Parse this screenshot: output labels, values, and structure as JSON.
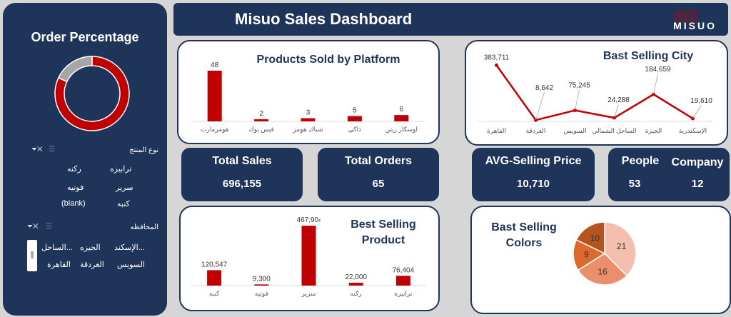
{
  "header": {
    "title": "Misuo Sales Dashboard",
    "logo_mark": "ⓒⓒ",
    "logo_text": "MISUO"
  },
  "sidebar": {
    "title": "Order Percentage",
    "slicer1": {
      "title": "نوع المنتج",
      "items": [
        "ترابيزه",
        "ركنه",
        "سرير",
        "فوتيه",
        "كنبه",
        "(blank)"
      ]
    },
    "slicer2": {
      "title": "المحافظه",
      "items": [
        "الإسكند...",
        "الجيزه",
        "الساحل...",
        "السويس",
        "الغردقة",
        "القاهرة"
      ]
    }
  },
  "kpis": {
    "total_sales": {
      "label": "Total Sales",
      "value": "696,155"
    },
    "total_orders": {
      "label": "Total Orders",
      "value": "65"
    },
    "avg_price": {
      "label": "AVG-Selling Price",
      "value": "10,710"
    },
    "people": {
      "label": "People",
      "value": "53"
    },
    "company": {
      "label": "Company",
      "value": "12"
    }
  },
  "colors": {
    "navy": "#1f3459",
    "bar_red": "#c00000",
    "donut_gray": "#a6a6a6"
  },
  "chart_data": [
    {
      "id": "order_percentage",
      "type": "pie",
      "donut": true,
      "values": [
        82,
        18
      ],
      "colors": [
        "#c00000",
        "#a6a6a6"
      ]
    },
    {
      "id": "platform",
      "type": "bar",
      "title": "Products Sold by Platform",
      "categories": [
        "هومزمارت",
        "فيس بوك",
        "شباك هومز",
        "ذاكي",
        "اوسكار ريتن"
      ],
      "values": [
        48,
        2,
        3,
        5,
        6
      ],
      "labels": [
        "48",
        "2",
        "3",
        "5",
        "6"
      ],
      "ylim": [
        0,
        50
      ]
    },
    {
      "id": "city",
      "type": "line",
      "title": "Bast Selling City",
      "categories": [
        "القاهرة",
        "الغردقة",
        "السويس",
        "الساحل الشمالي",
        "الجيزة",
        "الإسكندرية"
      ],
      "values": [
        383711,
        8642,
        75245,
        24288,
        184659,
        19610
      ],
      "labels": [
        "383,711",
        "8,642",
        "75,245",
        "24,288",
        "184,659",
        "19,610"
      ],
      "ylim": [
        0,
        400000
      ]
    },
    {
      "id": "product",
      "type": "bar",
      "title": "Best Selling Product",
      "categories": [
        "كنبه",
        "فوتيه",
        "سرير",
        "ركنه",
        "ترابيزه"
      ],
      "values": [
        120547,
        9300,
        467904,
        22000,
        76404
      ],
      "labels": [
        "120,547",
        "9,300",
        "467,90‹",
        "22,000",
        "76,404"
      ],
      "ylim": [
        0,
        480000
      ]
    },
    {
      "id": "colors",
      "type": "pie",
      "title": "Bast Selling Colors",
      "values": [
        21,
        16,
        9,
        10
      ],
      "labels": [
        "21",
        "16",
        "9",
        "10"
      ],
      "colors": [
        "#f4bfae",
        "#ea8f6c",
        "#dc6a2c",
        "#b5541e"
      ]
    }
  ]
}
